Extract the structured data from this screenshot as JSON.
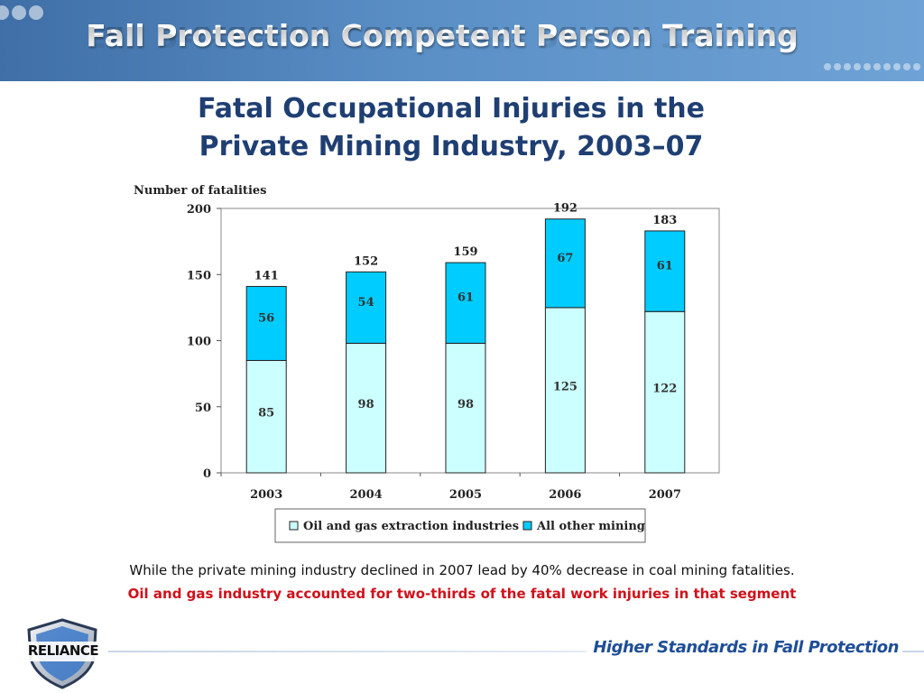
{
  "header": {
    "title": "Fall Protection Competent Person Training"
  },
  "slide": {
    "title_line1": "Fatal Occupational Injuries in the",
    "title_line2": "Private Mining Industry, 2003–07"
  },
  "chart_data": {
    "type": "bar",
    "stacked": true,
    "ylabel": "Number of fatalities",
    "xlabel": "",
    "ylim": [
      0,
      200
    ],
    "yticks": [
      0,
      50,
      100,
      150,
      200
    ],
    "categories": [
      "2003",
      "2004",
      "2005",
      "2006",
      "2007"
    ],
    "series": [
      {
        "name": "Oil and gas extraction industries",
        "values": [
          85,
          98,
          98,
          125,
          122
        ],
        "color": "#ccffff"
      },
      {
        "name": "All other mining",
        "values": [
          56,
          54,
          61,
          67,
          61
        ],
        "color": "#00ccff"
      }
    ],
    "totals": [
      141,
      152,
      159,
      192,
      183
    ],
    "grid": false,
    "legend_position": "bottom"
  },
  "notes": {
    "line1": "While the private mining industry declined in 2007 lead by 40% decrease in coal mining fatalities.",
    "line2": "Oil and gas industry accounted for two-thirds of the fatal work injuries in that segment"
  },
  "footer": {
    "logo_text": "RELIANCE",
    "tagline": "Higher Standards in Fall Protection"
  },
  "colors": {
    "header_blue": "#4f85bd",
    "title_navy": "#1f3f73",
    "note_red": "#d0101a",
    "tagline_blue": "#1f4e97"
  }
}
